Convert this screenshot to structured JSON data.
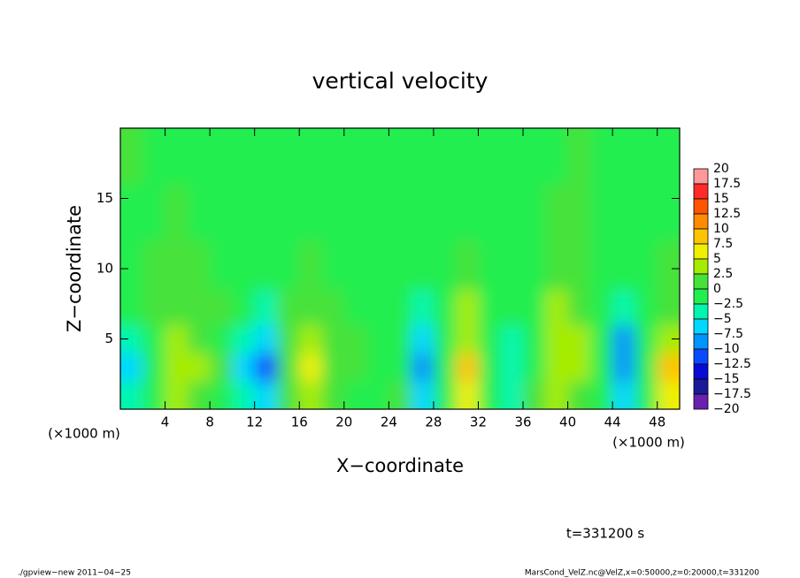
{
  "chart_data": {
    "type": "heatmap",
    "title": "vertical velocity",
    "xlabel": "X−coordinate",
    "ylabel": "Z−coordinate",
    "x_unit": "(×1000 m)",
    "xlim": [
      0,
      50
    ],
    "ylim": [
      0,
      20
    ],
    "xticks": [
      4,
      8,
      12,
      16,
      20,
      24,
      28,
      32,
      36,
      40,
      44,
      48
    ],
    "yticks": [
      5,
      10,
      15
    ],
    "x": [
      1,
      3,
      5,
      7,
      9,
      11,
      13,
      15,
      17,
      19,
      21,
      23,
      25,
      27,
      29,
      31,
      33,
      35,
      37,
      39,
      41,
      43,
      45,
      47,
      49
    ],
    "y": [
      1,
      3,
      5,
      7,
      10,
      14,
      18
    ],
    "values": [
      [
        -4,
        0,
        3,
        2,
        0,
        -4,
        -7,
        1,
        4,
        1,
        0,
        -1,
        1,
        -6,
        -1,
        6,
        -2,
        -3,
        1,
        3,
        2,
        -1,
        -5,
        -1,
        7
      ],
      [
        -5,
        -1,
        4,
        3,
        1,
        -5,
        -10,
        2,
        6,
        2,
        1,
        -2,
        0,
        -9,
        -2,
        8,
        -1,
        -4,
        0,
        4,
        3,
        -2,
        -8,
        -2,
        8
      ],
      [
        -3,
        0,
        3,
        2,
        0,
        -3,
        -7,
        1,
        4,
        1,
        1,
        -2,
        -1,
        -6,
        -1,
        5,
        0,
        -4,
        0,
        5,
        3,
        -1,
        -8,
        -1,
        5
      ],
      [
        -1,
        1,
        2,
        1,
        1,
        -1,
        -3,
        1,
        2,
        1,
        0,
        -1,
        -1,
        -3,
        0,
        3,
        0,
        -2,
        0,
        4,
        2,
        0,
        -3,
        0,
        2
      ],
      [
        0,
        1,
        1,
        1,
        0,
        -1,
        -1,
        0,
        1,
        0,
        0,
        -1,
        -1,
        -1,
        0,
        1,
        0,
        -1,
        0,
        2,
        1,
        0,
        -1,
        0,
        1
      ],
      [
        0,
        0,
        1,
        0,
        0,
        0,
        -1,
        0,
        0,
        0,
        -1,
        -1,
        0,
        0,
        0,
        0,
        0,
        -1,
        0,
        1,
        1,
        0,
        0,
        0,
        0
      ],
      [
        1,
        0,
        0,
        0,
        0,
        0,
        0,
        0,
        0,
        0,
        0,
        0,
        0,
        0,
        0,
        0,
        0,
        0,
        0,
        0,
        1,
        0,
        0,
        0,
        0
      ]
    ],
    "colorbar": {
      "levels": [
        20,
        17.5,
        15,
        12.5,
        10,
        7.5,
        5,
        2.5,
        0,
        {
          "value": -2.5,
          "label": "−2.5"
        },
        {
          "value": -5,
          "label": "−5"
        },
        {
          "value": -7.5,
          "label": "−7.5"
        },
        {
          "value": -10,
          "label": "−10"
        },
        {
          "value": -12.5,
          "label": "−12.5"
        },
        {
          "value": -15,
          "label": "−15"
        },
        {
          "value": -17.5,
          "label": "−17.5"
        },
        {
          "value": -20,
          "label": "−20"
        }
      ],
      "colors": [
        "#ff9898",
        "#ff2a2a",
        "#ff5500",
        "#ff8c00",
        "#ffc400",
        "#eef000",
        "#a6ec00",
        "#46e23a",
        "#22ee50",
        "#00f6b0",
        "#00d8ff",
        "#0094ff",
        "#0a4aff",
        "#0a0ad8",
        "#1a1a9a",
        "#6a1fb0"
      ]
    },
    "annotation": "t=331200 s",
    "footer_left": "./gpview−new  2011−04−25",
    "footer_right": "MarsCond_VelZ.nc@VelZ,x=0:50000,z=0:20000,t=331200"
  }
}
